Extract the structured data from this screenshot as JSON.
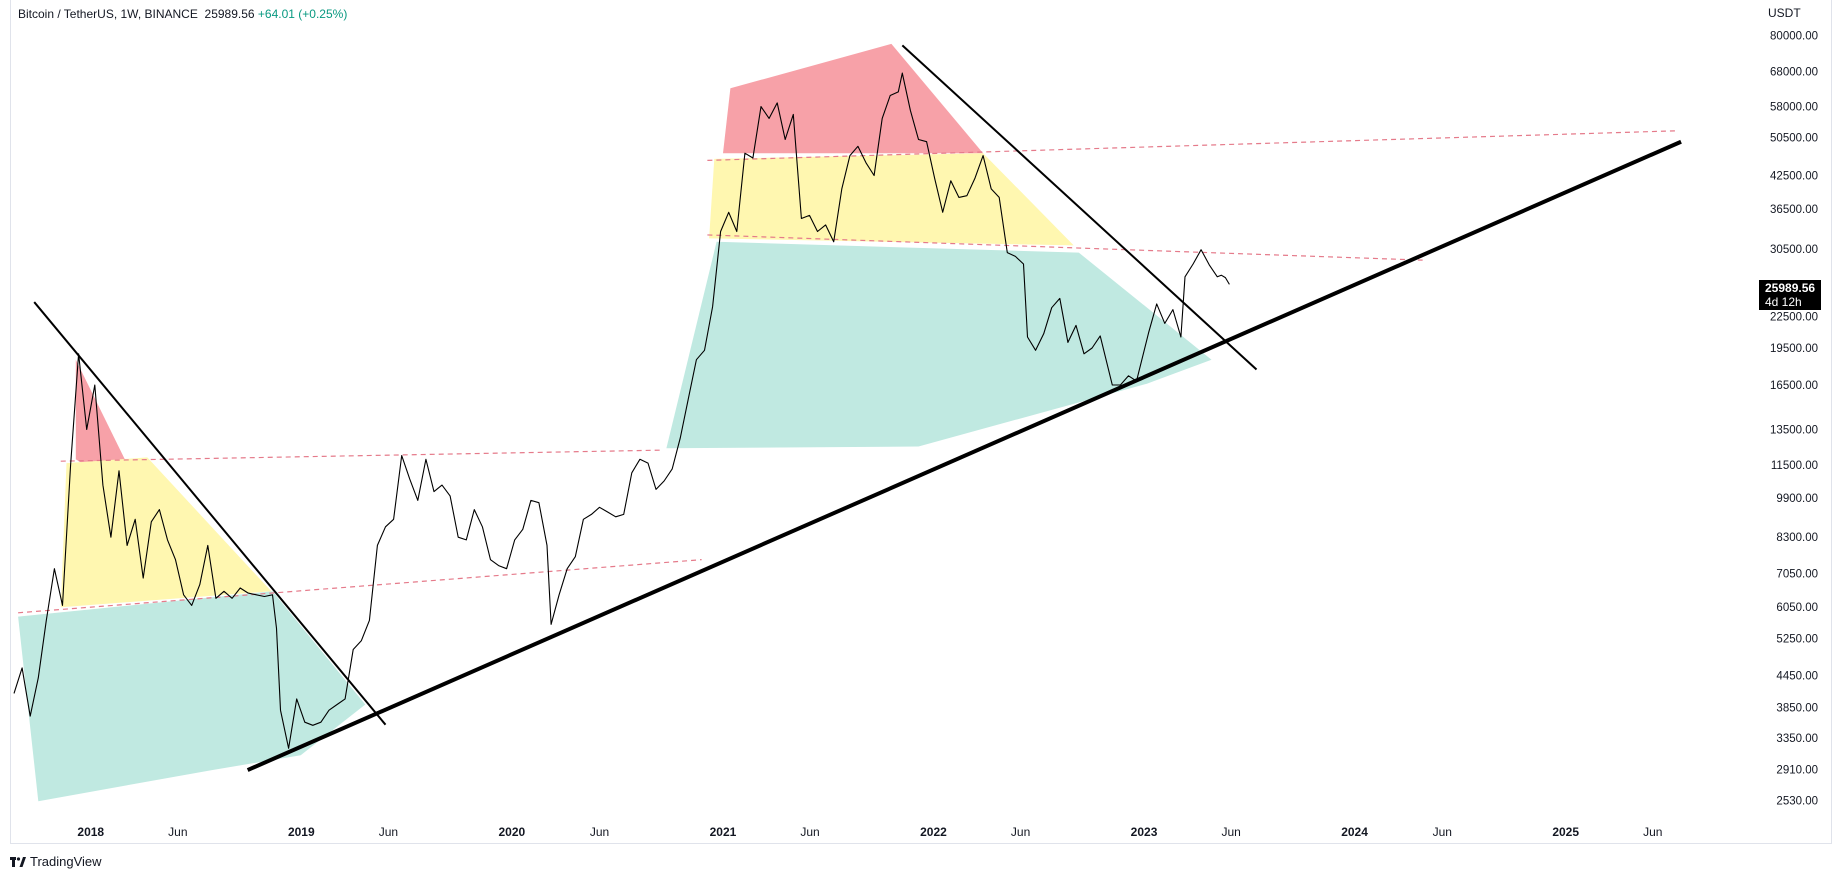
{
  "header": {
    "symbol": "Bitcoin / TetherUS, 1W, BINANCE",
    "last": "25989.56",
    "change": "+64.01 (+0.25%)",
    "currency": "USDT"
  },
  "price_tag": {
    "price": "25989.56",
    "countdown": "4d 12h"
  },
  "footer": {
    "brand": "TradingView",
    "logo": "tradingview-logo-icon"
  },
  "colors": {
    "line": "#000000",
    "zone_red": "#f7a1a8",
    "zone_yellow": "#fff7b0",
    "zone_teal": "#c0e9e1",
    "dashed": "#e57a8a",
    "trend": "#000000"
  },
  "chart_data": {
    "type": "line",
    "scale": "log",
    "ylim": [
      2400,
      85000
    ],
    "xlim": [
      "2017-08-14",
      "2025-11-20"
    ],
    "y_ticks": [
      "80000.00",
      "68000.00",
      "58000.00",
      "50500.00",
      "42500.00",
      "36500.00",
      "30500.00",
      "22500.00",
      "19500.00",
      "16500.00",
      "13500.00",
      "11500.00",
      "9900.00",
      "8300.00",
      "7050.00",
      "6050.00",
      "5250.00",
      "4450.00",
      "3850.00",
      "3350.00",
      "2910.00",
      "2530.00"
    ],
    "x_ticks": [
      {
        "date": "2018-01-01",
        "label": "2018"
      },
      {
        "date": "2018-06-01",
        "label": "Jun"
      },
      {
        "date": "2019-01-01",
        "label": "2019"
      },
      {
        "date": "2019-06-01",
        "label": "Jun"
      },
      {
        "date": "2020-01-01",
        "label": "2020"
      },
      {
        "date": "2020-06-01",
        "label": "Jun"
      },
      {
        "date": "2021-01-01",
        "label": "2021"
      },
      {
        "date": "2021-06-01",
        "label": "Jun"
      },
      {
        "date": "2022-01-01",
        "label": "2022"
      },
      {
        "date": "2022-06-01",
        "label": "Jun"
      },
      {
        "date": "2023-01-01",
        "label": "2023"
      },
      {
        "date": "2023-06-01",
        "label": "Jun"
      },
      {
        "date": "2024-01-01",
        "label": "2024"
      },
      {
        "date": "2024-06-01",
        "label": "Jun"
      },
      {
        "date": "2025-01-01",
        "label": "2025"
      },
      {
        "date": "2025-06-01",
        "label": "Jun"
      }
    ],
    "series": [
      {
        "values": [
          [
            "2017-08-21",
            4100
          ],
          [
            "2017-09-04",
            4600
          ],
          [
            "2017-09-18",
            3700
          ],
          [
            "2017-10-02",
            4400
          ],
          [
            "2017-10-16",
            5700
          ],
          [
            "2017-10-30",
            7200
          ],
          [
            "2017-11-13",
            6100
          ],
          [
            "2017-11-27",
            11500
          ],
          [
            "2017-12-11",
            19000
          ],
          [
            "2017-12-25",
            13500
          ],
          [
            "2018-01-08",
            16500
          ],
          [
            "2018-01-22",
            10500
          ],
          [
            "2018-02-05",
            8300
          ],
          [
            "2018-02-19",
            11200
          ],
          [
            "2018-03-05",
            8000
          ],
          [
            "2018-03-19",
            9000
          ],
          [
            "2018-04-02",
            6900
          ],
          [
            "2018-04-16",
            8900
          ],
          [
            "2018-04-30",
            9400
          ],
          [
            "2018-05-14",
            8200
          ],
          [
            "2018-05-28",
            7500
          ],
          [
            "2018-06-11",
            6400
          ],
          [
            "2018-06-25",
            6100
          ],
          [
            "2018-07-09",
            6700
          ],
          [
            "2018-07-23",
            8000
          ],
          [
            "2018-08-06",
            6300
          ],
          [
            "2018-08-20",
            6500
          ],
          [
            "2018-09-03",
            6300
          ],
          [
            "2018-09-17",
            6600
          ],
          [
            "2018-10-01",
            6450
          ],
          [
            "2018-10-15",
            6400
          ],
          [
            "2018-10-29",
            6350
          ],
          [
            "2018-11-12",
            6400
          ],
          [
            "2018-11-19",
            5500
          ],
          [
            "2018-11-26",
            3800
          ],
          [
            "2018-12-10",
            3200
          ],
          [
            "2018-12-24",
            4000
          ],
          [
            "2019-01-07",
            3600
          ],
          [
            "2019-01-21",
            3550
          ],
          [
            "2019-02-04",
            3600
          ],
          [
            "2019-02-18",
            3800
          ],
          [
            "2019-03-04",
            3900
          ],
          [
            "2019-03-18",
            4000
          ],
          [
            "2019-04-01",
            5000
          ],
          [
            "2019-04-15",
            5200
          ],
          [
            "2019-04-29",
            5700
          ],
          [
            "2019-05-13",
            8000
          ],
          [
            "2019-05-27",
            8700
          ],
          [
            "2019-06-10",
            9000
          ],
          [
            "2019-06-24",
            12000
          ],
          [
            "2019-07-08",
            10800
          ],
          [
            "2019-07-22",
            9800
          ],
          [
            "2019-08-05",
            11800
          ],
          [
            "2019-08-19",
            10200
          ],
          [
            "2019-09-02",
            10500
          ],
          [
            "2019-09-16",
            10000
          ],
          [
            "2019-09-30",
            8300
          ],
          [
            "2019-10-14",
            8200
          ],
          [
            "2019-10-28",
            9400
          ],
          [
            "2019-11-11",
            8700
          ],
          [
            "2019-11-25",
            7500
          ],
          [
            "2019-12-09",
            7300
          ],
          [
            "2019-12-23",
            7200
          ],
          [
            "2020-01-06",
            8200
          ],
          [
            "2020-01-20",
            8600
          ],
          [
            "2020-02-03",
            9800
          ],
          [
            "2020-02-17",
            9700
          ],
          [
            "2020-03-02",
            8000
          ],
          [
            "2020-03-09",
            5600
          ],
          [
            "2020-03-23",
            6400
          ],
          [
            "2020-04-06",
            7200
          ],
          [
            "2020-04-20",
            7600
          ],
          [
            "2020-05-04",
            9000
          ],
          [
            "2020-05-18",
            9200
          ],
          [
            "2020-06-01",
            9500
          ],
          [
            "2020-06-15",
            9300
          ],
          [
            "2020-06-29",
            9100
          ],
          [
            "2020-07-13",
            9200
          ],
          [
            "2020-07-27",
            11100
          ],
          [
            "2020-08-10",
            11800
          ],
          [
            "2020-08-24",
            11600
          ],
          [
            "2020-09-07",
            10300
          ],
          [
            "2020-09-21",
            10700
          ],
          [
            "2020-10-05",
            11300
          ],
          [
            "2020-10-19",
            13000
          ],
          [
            "2020-11-02",
            15500
          ],
          [
            "2020-11-16",
            18500
          ],
          [
            "2020-11-30",
            19300
          ],
          [
            "2020-12-14",
            23500
          ],
          [
            "2020-12-28",
            33000
          ],
          [
            "2021-01-11",
            36000
          ],
          [
            "2021-01-25",
            33000
          ],
          [
            "2021-02-08",
            47000
          ],
          [
            "2021-02-22",
            46000
          ],
          [
            "2021-03-08",
            58000
          ],
          [
            "2021-03-22",
            55000
          ],
          [
            "2021-04-05",
            59000
          ],
          [
            "2021-04-19",
            50000
          ],
          [
            "2021-05-03",
            56000
          ],
          [
            "2021-05-17",
            35000
          ],
          [
            "2021-05-31",
            35500
          ],
          [
            "2021-06-14",
            33000
          ],
          [
            "2021-06-28",
            34000
          ],
          [
            "2021-07-12",
            31500
          ],
          [
            "2021-07-26",
            40000
          ],
          [
            "2021-08-09",
            46500
          ],
          [
            "2021-08-23",
            48500
          ],
          [
            "2021-09-06",
            45000
          ],
          [
            "2021-09-20",
            42500
          ],
          [
            "2021-10-04",
            55000
          ],
          [
            "2021-10-18",
            61000
          ],
          [
            "2021-11-01",
            62000
          ],
          [
            "2021-11-08",
            67500
          ],
          [
            "2021-11-22",
            57000
          ],
          [
            "2021-12-06",
            50000
          ],
          [
            "2021-12-20",
            49500
          ],
          [
            "2022-01-03",
            42000
          ],
          [
            "2022-01-17",
            36000
          ],
          [
            "2022-01-31",
            41500
          ],
          [
            "2022-02-14",
            38500
          ],
          [
            "2022-02-28",
            38800
          ],
          [
            "2022-03-14",
            42000
          ],
          [
            "2022-03-28",
            46500
          ],
          [
            "2022-04-11",
            40000
          ],
          [
            "2022-04-25",
            38500
          ],
          [
            "2022-05-09",
            30000
          ],
          [
            "2022-05-23",
            29500
          ],
          [
            "2022-06-06",
            28500
          ],
          [
            "2022-06-13",
            20500
          ],
          [
            "2022-06-27",
            19300
          ],
          [
            "2022-07-11",
            20800
          ],
          [
            "2022-07-25",
            23400
          ],
          [
            "2022-08-08",
            24400
          ],
          [
            "2022-08-22",
            20000
          ],
          [
            "2022-09-05",
            21600
          ],
          [
            "2022-09-19",
            19000
          ],
          [
            "2022-10-03",
            19500
          ],
          [
            "2022-10-17",
            20600
          ],
          [
            "2022-11-07",
            16500
          ],
          [
            "2022-11-21",
            16500
          ],
          [
            "2022-12-05",
            17200
          ],
          [
            "2022-12-19",
            16800
          ],
          [
            "2023-01-09",
            20900
          ],
          [
            "2023-01-23",
            23800
          ],
          [
            "2023-02-06",
            21800
          ],
          [
            "2023-02-20",
            23200
          ],
          [
            "2023-03-06",
            20500
          ],
          [
            "2023-03-13",
            26900
          ],
          [
            "2023-03-27",
            28500
          ],
          [
            "2023-04-10",
            30400
          ],
          [
            "2023-04-24",
            28400
          ],
          [
            "2023-05-08",
            26900
          ],
          [
            "2023-05-15",
            27100
          ],
          [
            "2023-05-22",
            26800
          ],
          [
            "2023-05-29",
            25989.56
          ]
        ]
      }
    ],
    "zones": [
      {
        "color": "red",
        "points": [
          [
            "2017-12-06",
            18500
          ],
          [
            "2018-04-09",
            9600
          ],
          [
            "2017-12-06",
            11800
          ]
        ]
      },
      {
        "color": "yellow",
        "points": [
          [
            "2017-11-20",
            11600
          ],
          [
            "2018-04-09",
            11900
          ],
          [
            "2018-11-10",
            6500
          ],
          [
            "2017-11-10",
            6050
          ]
        ]
      },
      {
        "color": "teal",
        "points": [
          [
            "2017-08-28",
            5800
          ],
          [
            "2018-11-12",
            6500
          ],
          [
            "2019-04-22",
            3900
          ],
          [
            "2018-12-31",
            3100
          ],
          [
            "2018-07-30",
            2900
          ],
          [
            "2017-10-02",
            2520
          ]
        ]
      },
      {
        "color": "red",
        "points": [
          [
            "2021-01-14",
            63000
          ],
          [
            "2021-10-20",
            77000
          ],
          [
            "2022-03-28",
            47000
          ],
          [
            "2021-01-00",
            47000
          ]
        ]
      },
      {
        "color": "yellow",
        "points": [
          [
            "2020-12-17",
            45800
          ],
          [
            "2022-03-28",
            47000
          ],
          [
            "2022-09-01",
            31000
          ],
          [
            "2020-12-08",
            32000
          ]
        ]
      },
      {
        "color": "teal",
        "points": [
          [
            "2020-12-21",
            31500
          ],
          [
            "2022-09-10",
            30000
          ],
          [
            "2023-04-28",
            18500
          ],
          [
            "2023-01-06",
            16600
          ],
          [
            "2021-12-06",
            12500
          ],
          [
            "2020-09-25",
            12400
          ]
        ]
      }
    ],
    "dashed_lines": [
      [
        [
          "2017-08-28",
          5900
        ],
        [
          "2020-11-25",
          7500
        ]
      ],
      [
        [
          "2017-11-10",
          11700
        ],
        [
          "2020-09-20",
          12300
        ]
      ],
      [
        [
          "2020-12-05",
          32500
        ],
        [
          "2024-04-28",
          29000
        ]
      ],
      [
        [
          "2020-12-05",
          45500
        ],
        [
          "2025-07-10",
          52000
        ]
      ]
    ],
    "trend_lines": [
      {
        "width": 2,
        "points": [
          [
            "2017-09-25",
            24000
          ],
          [
            "2019-05-27",
            3560
          ]
        ]
      },
      {
        "width": 2,
        "points": [
          [
            "2021-11-08",
            76500
          ],
          [
            "2023-07-15",
            17700
          ]
        ]
      },
      {
        "width": 4,
        "points": [
          [
            "2018-09-30",
            2900
          ],
          [
            "2025-07-20",
            49500
          ]
        ]
      }
    ]
  }
}
